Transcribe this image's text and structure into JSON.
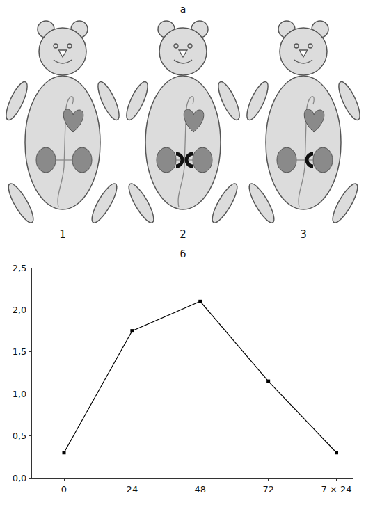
{
  "diagram": {
    "label": "а",
    "mice": [
      "1",
      "2",
      "3"
    ]
  },
  "chart_data": {
    "type": "line",
    "title": "б",
    "categories": [
      "0",
      "24",
      "48",
      "72",
      "7 × 24"
    ],
    "values": [
      0.3,
      1.75,
      2.1,
      1.15,
      0.3
    ],
    "color": "#000000",
    "marker": "square",
    "ylim": [
      0,
      2.5
    ],
    "yticks": [
      {
        "value": 0,
        "label": "0,0"
      },
      {
        "value": 0.5,
        "label": "0,5"
      },
      {
        "value": 1,
        "label": "1,0"
      },
      {
        "value": 1.5,
        "label": "1,5"
      },
      {
        "value": 2,
        "label": "2,0"
      },
      {
        "value": 2.5,
        "label": "2,5"
      }
    ],
    "grid": false
  }
}
